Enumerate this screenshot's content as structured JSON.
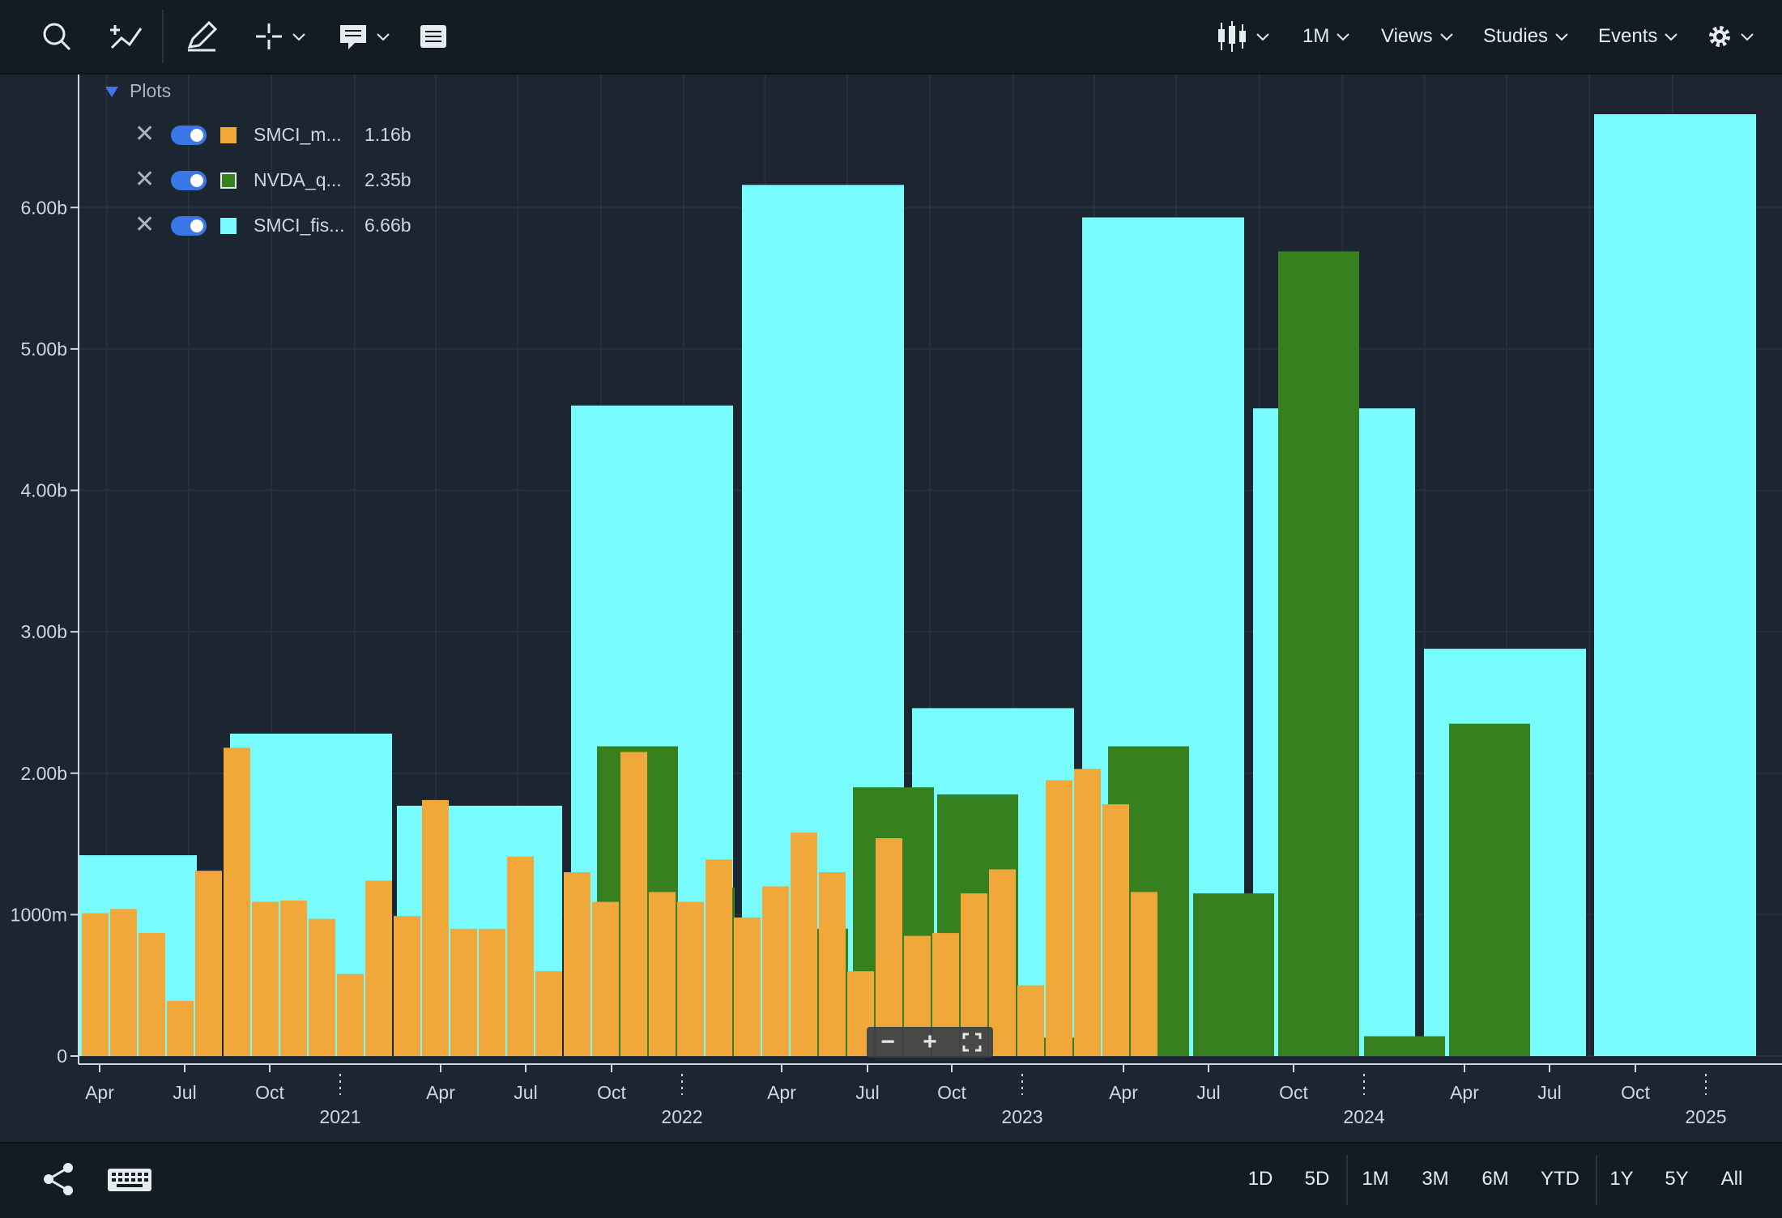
{
  "toolbar": {
    "left_tools": [
      "search-icon",
      "add-comparison-icon",
      "draw-icon",
      "crosshair-icon",
      "comment-icon",
      "table-icon"
    ],
    "chart_type_icon": "candlestick-icon",
    "period": "1M",
    "views_label": "Views",
    "studies_label": "Studies",
    "events_label": "Events",
    "settings_icon": "gear-icon"
  },
  "legend": {
    "title": "Plots",
    "items": [
      {
        "name": "SMCI_m...",
        "value": "1.16b",
        "color": "#f0a83a",
        "border": "#f0a83a"
      },
      {
        "name": "NVDA_q...",
        "value": "2.35b",
        "color": "#37801f",
        "border": "#e6ebf0"
      },
      {
        "name": "SMCI_fis...",
        "value": "6.66b",
        "color": "#77fbfd",
        "border": "#77fbfd"
      }
    ]
  },
  "bottombar": {
    "ranges": [
      "1D",
      "5D",
      "1M",
      "3M",
      "6M",
      "YTD",
      "1Y",
      "5Y",
      "All"
    ]
  },
  "zoom": {
    "minus": "−",
    "plus": "+"
  },
  "chart_data": {
    "type": "bar",
    "ylim": [
      0,
      6660000000
    ],
    "y_ticks": [
      {
        "v": 0,
        "label": "0"
      },
      {
        "v": 1000000000,
        "label": "1000m"
      },
      {
        "v": 2000000000,
        "label": "2.00b"
      },
      {
        "v": 3000000000,
        "label": "3.00b"
      },
      {
        "v": 4000000000,
        "label": "4.00b"
      },
      {
        "v": 5000000000,
        "label": "5.00b"
      },
      {
        "v": 6000000000,
        "label": "6.00b"
      }
    ],
    "x_range": [
      "2020-03-01",
      "2025-04-01"
    ],
    "x_ticks": [
      {
        "d": "2020-04-01",
        "label": "Apr"
      },
      {
        "d": "2020-07-01",
        "label": "Jul"
      },
      {
        "d": "2020-10-01",
        "label": "Oct"
      },
      {
        "d": "2021-04-01",
        "label": "Apr"
      },
      {
        "d": "2021-07-01",
        "label": "Jul"
      },
      {
        "d": "2021-10-01",
        "label": "Oct"
      },
      {
        "d": "2022-04-01",
        "label": "Apr"
      },
      {
        "d": "2022-07-01",
        "label": "Jul"
      },
      {
        "d": "2022-10-01",
        "label": "Oct"
      },
      {
        "d": "2023-04-01",
        "label": "Apr"
      },
      {
        "d": "2023-07-01",
        "label": "Jul"
      },
      {
        "d": "2023-10-01",
        "label": "Oct"
      },
      {
        "d": "2024-04-01",
        "label": "Apr"
      },
      {
        "d": "2024-07-01",
        "label": "Jul"
      },
      {
        "d": "2024-10-01",
        "label": "Oct"
      }
    ],
    "year_ticks": [
      {
        "d": "2021-01-01",
        "label": "2021"
      },
      {
        "d": "2022-01-01",
        "label": "2022"
      },
      {
        "d": "2023-01-01",
        "label": "2023"
      },
      {
        "d": "2024-01-01",
        "label": "2024"
      },
      {
        "d": "2025-01-01",
        "label": "2025"
      }
    ],
    "grid": true,
    "legend_position": "top-left",
    "series": [
      {
        "name": "SMCI_fis...",
        "color": "#77fbfd",
        "bars": [
          {
            "start": "2019-07-01",
            "end": "2020-06-30",
            "value": 1420000000
          },
          {
            "start": "2020-07-01",
            "end": "2021-06-30",
            "value": 2280000000
          },
          {
            "start": "2021-07-01",
            "end": "2022-06-30",
            "value": 1770000000
          },
          {
            "start": "2022-07-01",
            "end": "2023-06-30",
            "value": 4600000000
          },
          {
            "start": "2023-07-01",
            "end": "2024-06-30",
            "value": 6160000000
          },
          {
            "start": "2024-07-01",
            "end": "2025-06-30",
            "value": 2460000000
          },
          {
            "start": "2025-07-01",
            "end": "2026-06-30",
            "value": 5930000000
          },
          {
            "start": "2026-07-01",
            "end": "2027-06-30",
            "value": 4580000000
          },
          {
            "start": "2027-07-01",
            "end": "2028-06-30",
            "value": 2880000000
          },
          {
            "start": "2028-07-01",
            "end": "2029-06-30",
            "value": 6660000000
          }
        ]
      },
      {
        "name": "NVDA_q...",
        "color": "#37801f",
        "bars": [
          {
            "start": "2021-10-01",
            "end": "2021-12-31",
            "value": 2190000000
          },
          {
            "start": "2022-01-01",
            "end": "2022-03-31",
            "value": 1190000000
          },
          {
            "start": "2022-04-01",
            "end": "2022-06-30",
            "value": 900000000
          },
          {
            "start": "2022-07-01",
            "end": "2022-09-30",
            "value": 1900000000
          },
          {
            "start": "2022-10-01",
            "end": "2022-12-31",
            "value": 1850000000
          },
          {
            "start": "2023-01-01",
            "end": "2023-03-31",
            "value": 130000000
          },
          {
            "start": "2023-04-01",
            "end": "2023-06-30",
            "value": 2190000000
          },
          {
            "start": "2023-07-01",
            "end": "2023-09-30",
            "value": 1150000000
          },
          {
            "start": "2023-10-01",
            "end": "2023-12-31",
            "value": 5690000000
          },
          {
            "start": "2024-01-01",
            "end": "2024-03-31",
            "value": 140000000
          },
          {
            "start": "2024-04-01",
            "end": "2024-06-30",
            "value": 2350000000
          }
        ]
      },
      {
        "name": "SMCI_m...",
        "color": "#f0a83a",
        "bars": [
          {
            "month": "2020-03",
            "value": 1010000000
          },
          {
            "month": "2020-04",
            "value": 1040000000
          },
          {
            "month": "2020-05",
            "value": 870000000
          },
          {
            "month": "2020-06",
            "value": 390000000
          },
          {
            "month": "2020-07",
            "value": 1310000000
          },
          {
            "month": "2020-08",
            "value": 2180000000
          },
          {
            "month": "2020-09",
            "value": 1090000000
          },
          {
            "month": "2020-10",
            "value": 1100000000
          },
          {
            "month": "2020-11",
            "value": 970000000
          },
          {
            "month": "2020-12",
            "value": 580000000
          },
          {
            "month": "2021-01",
            "value": 1240000000
          },
          {
            "month": "2021-02",
            "value": 990000000
          },
          {
            "month": "2021-03",
            "value": 1810000000
          },
          {
            "month": "2021-04",
            "value": 900000000
          },
          {
            "month": "2021-05",
            "value": 900000000
          },
          {
            "month": "2021-06",
            "value": 1410000000
          },
          {
            "month": "2021-07",
            "value": 600000000
          },
          {
            "month": "2021-08",
            "value": 1300000000
          },
          {
            "month": "2021-09",
            "value": 1090000000
          },
          {
            "month": "2021-10",
            "value": 2150000000
          },
          {
            "month": "2021-11",
            "value": 1160000000
          },
          {
            "month": "2021-12",
            "value": 1090000000
          },
          {
            "month": "2022-01",
            "value": 1390000000
          },
          {
            "month": "2022-02",
            "value": 980000000
          },
          {
            "month": "2022-03",
            "value": 1200000000
          },
          {
            "month": "2022-04",
            "value": 1580000000
          },
          {
            "month": "2022-05",
            "value": 1300000000
          },
          {
            "month": "2022-06",
            "value": 600000000
          },
          {
            "month": "2022-07",
            "value": 1540000000
          },
          {
            "month": "2022-08",
            "value": 850000000
          },
          {
            "month": "2022-09",
            "value": 870000000
          },
          {
            "month": "2022-10",
            "value": 1150000000
          },
          {
            "month": "2022-11",
            "value": 1320000000
          },
          {
            "month": "2022-12",
            "value": 500000000
          },
          {
            "month": "2023-01",
            "value": 1950000000
          },
          {
            "month": "2023-02",
            "value": 2030000000
          },
          {
            "month": "2023-03",
            "value": 1780000000
          },
          {
            "month": "2023-04",
            "value": 1160000000
          }
        ]
      }
    ]
  }
}
